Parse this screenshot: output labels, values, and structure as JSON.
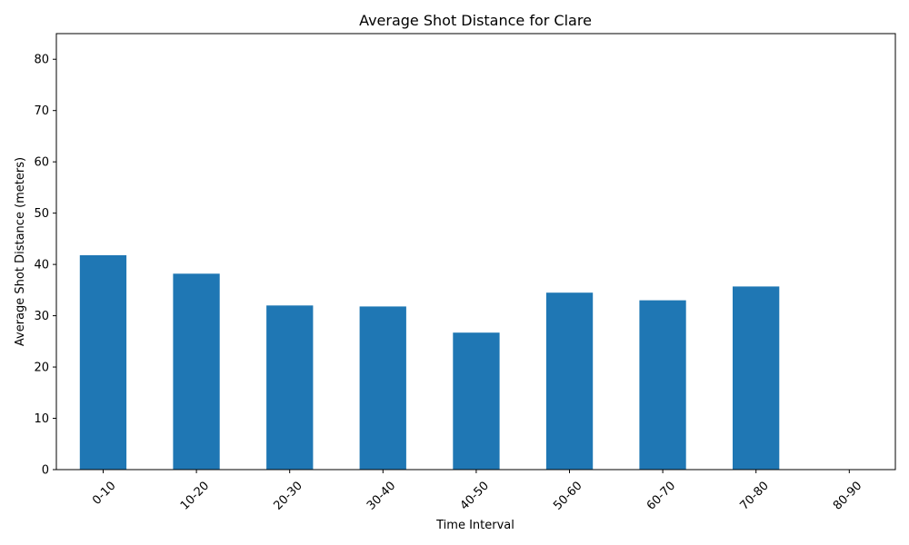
{
  "chart_data": {
    "type": "bar",
    "title": "Average Shot Distance for Clare",
    "xlabel": "Time Interval",
    "ylabel": "Average Shot Distance (meters)",
    "categories": [
      "0-10",
      "10-20",
      "20-30",
      "30-40",
      "40-50",
      "50-60",
      "60-70",
      "70-80",
      "80-90"
    ],
    "values": [
      41.8,
      38.2,
      32.0,
      31.8,
      26.7,
      34.5,
      33.0,
      35.7,
      0
    ],
    "ylim": [
      0,
      85
    ],
    "yticks": [
      0,
      10,
      20,
      30,
      40,
      50,
      60,
      70,
      80
    ],
    "grid": false,
    "bar_color": "#1f77b4"
  }
}
